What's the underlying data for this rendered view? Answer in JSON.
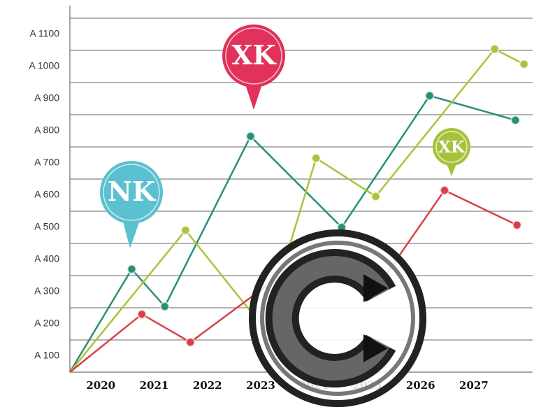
{
  "chart_data": {
    "type": "line",
    "xlim": [
      2019.42,
      2028.26
    ],
    "xticks": [
      2020,
      2021,
      2022,
      2023,
      2024,
      2025,
      2026,
      2027
    ],
    "ylim": [
      0,
      1100
    ],
    "yticks": [
      {
        "value": 100,
        "label": "A 100"
      },
      {
        "value": 200,
        "label": "A 200"
      },
      {
        "value": 300,
        "label": "A 300"
      },
      {
        "value": 400,
        "label": "A 400"
      },
      {
        "value": 500,
        "label": "A 500"
      },
      {
        "value": 600,
        "label": "A 600"
      },
      {
        "value": 700,
        "label": "A 700"
      },
      {
        "value": 800,
        "label": "A 800"
      },
      {
        "value": 900,
        "label": "A 900"
      },
      {
        "value": 1000,
        "label": "A 1000"
      },
      {
        "value": 1100,
        "label": "A 1100"
      }
    ],
    "grid": true,
    "series": [
      {
        "color": "#2a8f78",
        "x": [
          2019.42,
          2020.58,
          2021.2,
          2022.81,
          2024.52,
          2026.17,
          2027.78
        ],
        "values": [
          0,
          320,
          204,
          733,
          450,
          859,
          783
        ]
      },
      {
        "color": "#a8c43c",
        "x": [
          2019.42,
          2021.59,
          2023.07,
          2024.04,
          2025.16,
          2027.39,
          2027.94
        ],
        "values": [
          0,
          441,
          135,
          665,
          546,
          1004,
          957
        ]
      },
      {
        "color": "#d9404a",
        "x": [
          2019.42,
          2020.77,
          2021.68,
          2023.95,
          2025.1,
          2026.45,
          2027.81
        ],
        "values": [
          0,
          180,
          93,
          372,
          243,
          565,
          457
        ]
      }
    ],
    "annotations": [
      {
        "text": "NK",
        "color": "#5bc0d0"
      },
      {
        "text": "XK",
        "color": "#e0325a"
      },
      {
        "text": "XK",
        "color": "#a6c23a"
      }
    ]
  }
}
